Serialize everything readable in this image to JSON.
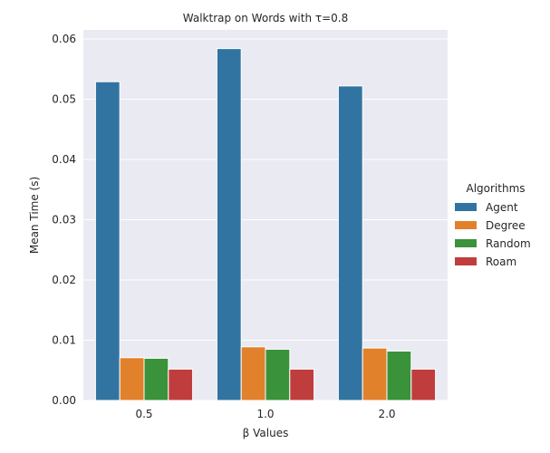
{
  "chart_data": {
    "type": "bar",
    "title": "Walktrap on Words with τ=0.8",
    "xlabel": "β Values",
    "ylabel": "Mean Time (s)",
    "categories": [
      "0.5",
      "1.0",
      "2.0"
    ],
    "ylim": [
      0,
      0.0615
    ],
    "yticks": [
      0.0,
      0.01,
      0.02,
      0.03,
      0.04,
      0.05,
      0.06
    ],
    "ytick_labels": [
      "0.00",
      "0.01",
      "0.02",
      "0.03",
      "0.04",
      "0.05",
      "0.06"
    ],
    "grid": true,
    "background": "#eaeaf2",
    "legend": {
      "title": "Algorithms",
      "placement": "right"
    },
    "series": [
      {
        "name": "Agent",
        "color": "#3274a1",
        "values": [
          0.0529,
          0.0584,
          0.0522
        ]
      },
      {
        "name": "Degree",
        "color": "#e1812c",
        "values": [
          0.0071,
          0.0089,
          0.0087
        ]
      },
      {
        "name": "Random",
        "color": "#3a923a",
        "values": [
          0.007,
          0.0085,
          0.0082
        ]
      },
      {
        "name": "Roam",
        "color": "#c03d3e",
        "values": [
          0.0052,
          0.0052,
          0.0052
        ]
      }
    ]
  }
}
